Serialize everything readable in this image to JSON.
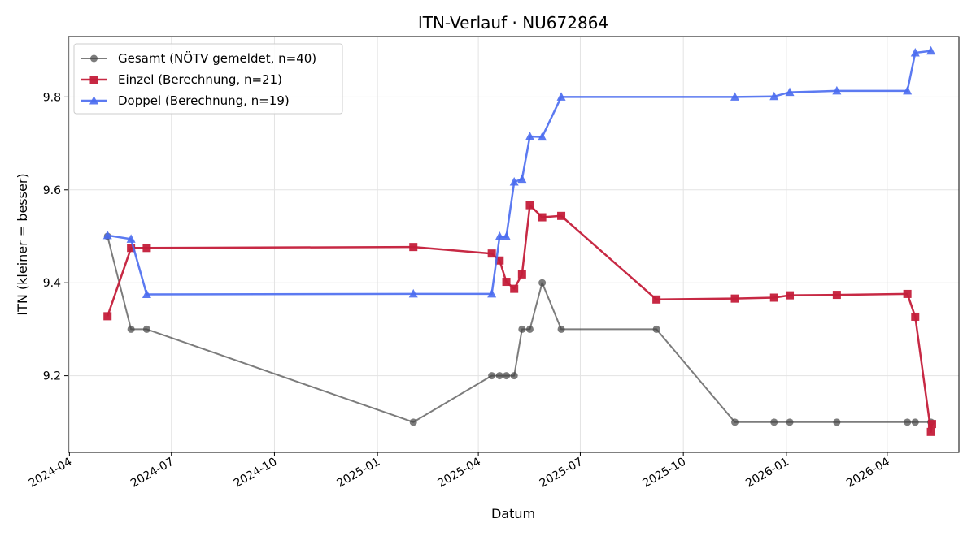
{
  "chart_data": {
    "type": "line",
    "title": "ITN-Verlauf · NU672864",
    "xlabel": "Datum",
    "ylabel": "ITN  (kleiner = besser)",
    "x_range": [
      "2024-03-31",
      "2026-06-04"
    ],
    "ylim": [
      9.035,
      9.93
    ],
    "y_ticks": [
      9.2,
      9.4,
      9.6,
      9.8
    ],
    "x_ticks": [
      "2024-04-01",
      "2024-07-01",
      "2024-10-01",
      "2025-01-01",
      "2025-04-01",
      "2025-07-01",
      "2025-10-01",
      "2026-01-01",
      "2026-04-01"
    ],
    "x_tick_labels": [
      "2024-04",
      "2024-07",
      "2024-10",
      "2025-01",
      "2025-04",
      "2025-07",
      "2025-10",
      "2026-01",
      "2026-04"
    ],
    "grid": true,
    "legend_position": "upper-left",
    "series": [
      {
        "name": "Gesamt (NÖTV gemeldet, n=40)",
        "color": "#444444",
        "marker": "circle",
        "points": [
          [
            "2024-05-05",
            9.5
          ],
          [
            "2024-05-26",
            9.3
          ],
          [
            "2024-06-09",
            9.3
          ],
          [
            "2025-02-02",
            9.1
          ],
          [
            "2025-04-13",
            9.2
          ],
          [
            "2025-04-20",
            9.2
          ],
          [
            "2025-04-26",
            9.2
          ],
          [
            "2025-05-03",
            9.2
          ],
          [
            "2025-05-10",
            9.3
          ],
          [
            "2025-05-17",
            9.3
          ],
          [
            "2025-05-28",
            9.4
          ],
          [
            "2025-06-14",
            9.3
          ],
          [
            "2025-09-07",
            9.3
          ],
          [
            "2025-11-16",
            9.1
          ],
          [
            "2025-12-21",
            9.1
          ],
          [
            "2026-01-04",
            9.1
          ],
          [
            "2026-02-15",
            9.1
          ],
          [
            "2026-04-19",
            9.1
          ],
          [
            "2026-04-26",
            9.1
          ],
          [
            "2026-05-10",
            9.1
          ]
        ]
      },
      {
        "name": "Einzel (Berechnung, n=21)",
        "color": "#c41e3a",
        "marker": "square",
        "points": [
          [
            "2024-05-05",
            9.328
          ],
          [
            "2024-05-26",
            9.475
          ],
          [
            "2024-06-09",
            9.475
          ],
          [
            "2025-02-02",
            9.477
          ],
          [
            "2025-04-13",
            9.463
          ],
          [
            "2025-04-20",
            9.448
          ],
          [
            "2025-04-26",
            9.402
          ],
          [
            "2025-05-03",
            9.387
          ],
          [
            "2025-05-10",
            9.418
          ],
          [
            "2025-05-17",
            9.567
          ],
          [
            "2025-05-28",
            9.541
          ],
          [
            "2025-06-14",
            9.544
          ],
          [
            "2025-09-07",
            9.364
          ],
          [
            "2025-11-16",
            9.366
          ],
          [
            "2025-12-21",
            9.368
          ],
          [
            "2026-01-04",
            9.373
          ],
          [
            "2026-02-15",
            9.374
          ],
          [
            "2026-04-19",
            9.376
          ],
          [
            "2026-04-26",
            9.327
          ],
          [
            "2026-05-10",
            9.079
          ],
          [
            "2026-05-11",
            9.096
          ]
        ]
      },
      {
        "name": "Doppel (Berechnung, n=19)",
        "color": "#4a6cf0",
        "marker": "triangle",
        "points": [
          [
            "2024-05-05",
            9.502
          ],
          [
            "2024-05-26",
            9.494
          ],
          [
            "2024-06-09",
            9.375
          ],
          [
            "2025-02-02",
            9.376
          ],
          [
            "2025-04-13",
            9.376
          ],
          [
            "2025-04-20",
            9.5
          ],
          [
            "2025-04-26",
            9.499
          ],
          [
            "2025-05-03",
            9.617
          ],
          [
            "2025-05-10",
            9.623
          ],
          [
            "2025-05-17",
            9.715
          ],
          [
            "2025-05-28",
            9.714
          ],
          [
            "2025-06-14",
            9.8
          ],
          [
            "2025-11-16",
            9.8
          ],
          [
            "2025-12-21",
            9.801
          ],
          [
            "2026-01-04",
            9.81
          ],
          [
            "2026-02-15",
            9.813
          ],
          [
            "2026-04-19",
            9.813
          ],
          [
            "2026-04-26",
            9.895
          ],
          [
            "2026-05-10",
            9.899
          ]
        ]
      }
    ]
  }
}
